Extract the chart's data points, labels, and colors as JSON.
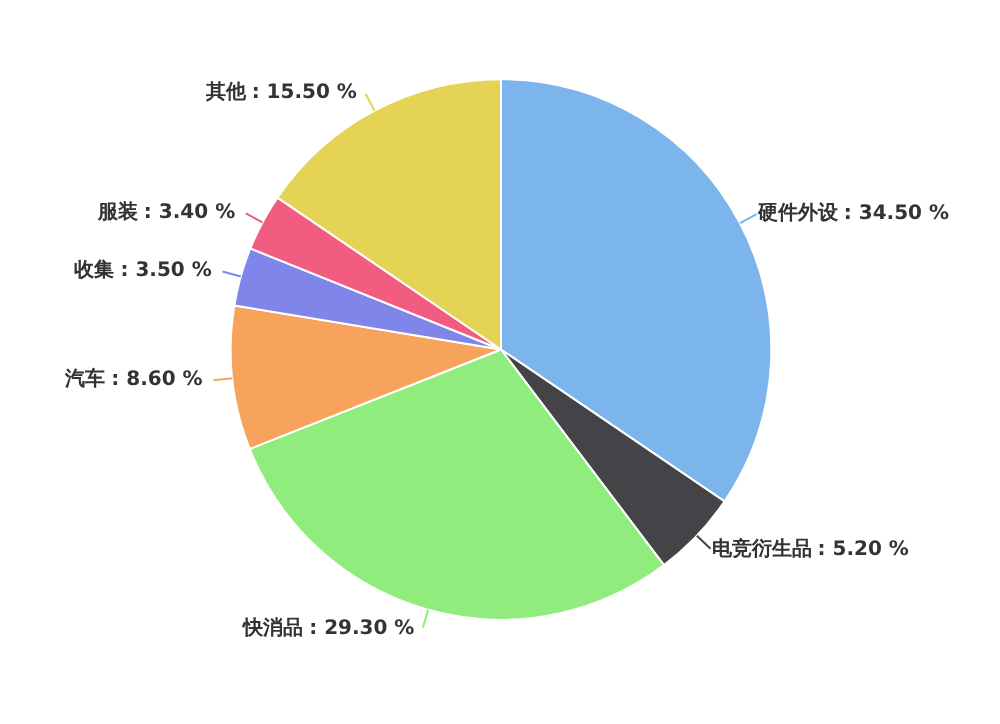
{
  "chart_data": {
    "type": "pie",
    "categories": [
      "硬件外设",
      "电竞衍生品",
      "快消品",
      "汽车",
      "收集",
      "服装",
      "其他"
    ],
    "values": [
      34.5,
      5.2,
      29.3,
      8.6,
      3.5,
      3.4,
      15.5
    ],
    "colors": [
      "#7cb5ec",
      "#434348",
      "#90ed7d",
      "#f7a35c",
      "#8085e9",
      "#f15c80",
      "#e4d354"
    ],
    "value_labels": [
      ": 34.50 %",
      ": 5.20 %",
      ": 29.30 %",
      ": 8.60 %",
      ": 3.50 %",
      ": 3.40 %",
      ": 15.50 %"
    ],
    "legend": false
  }
}
